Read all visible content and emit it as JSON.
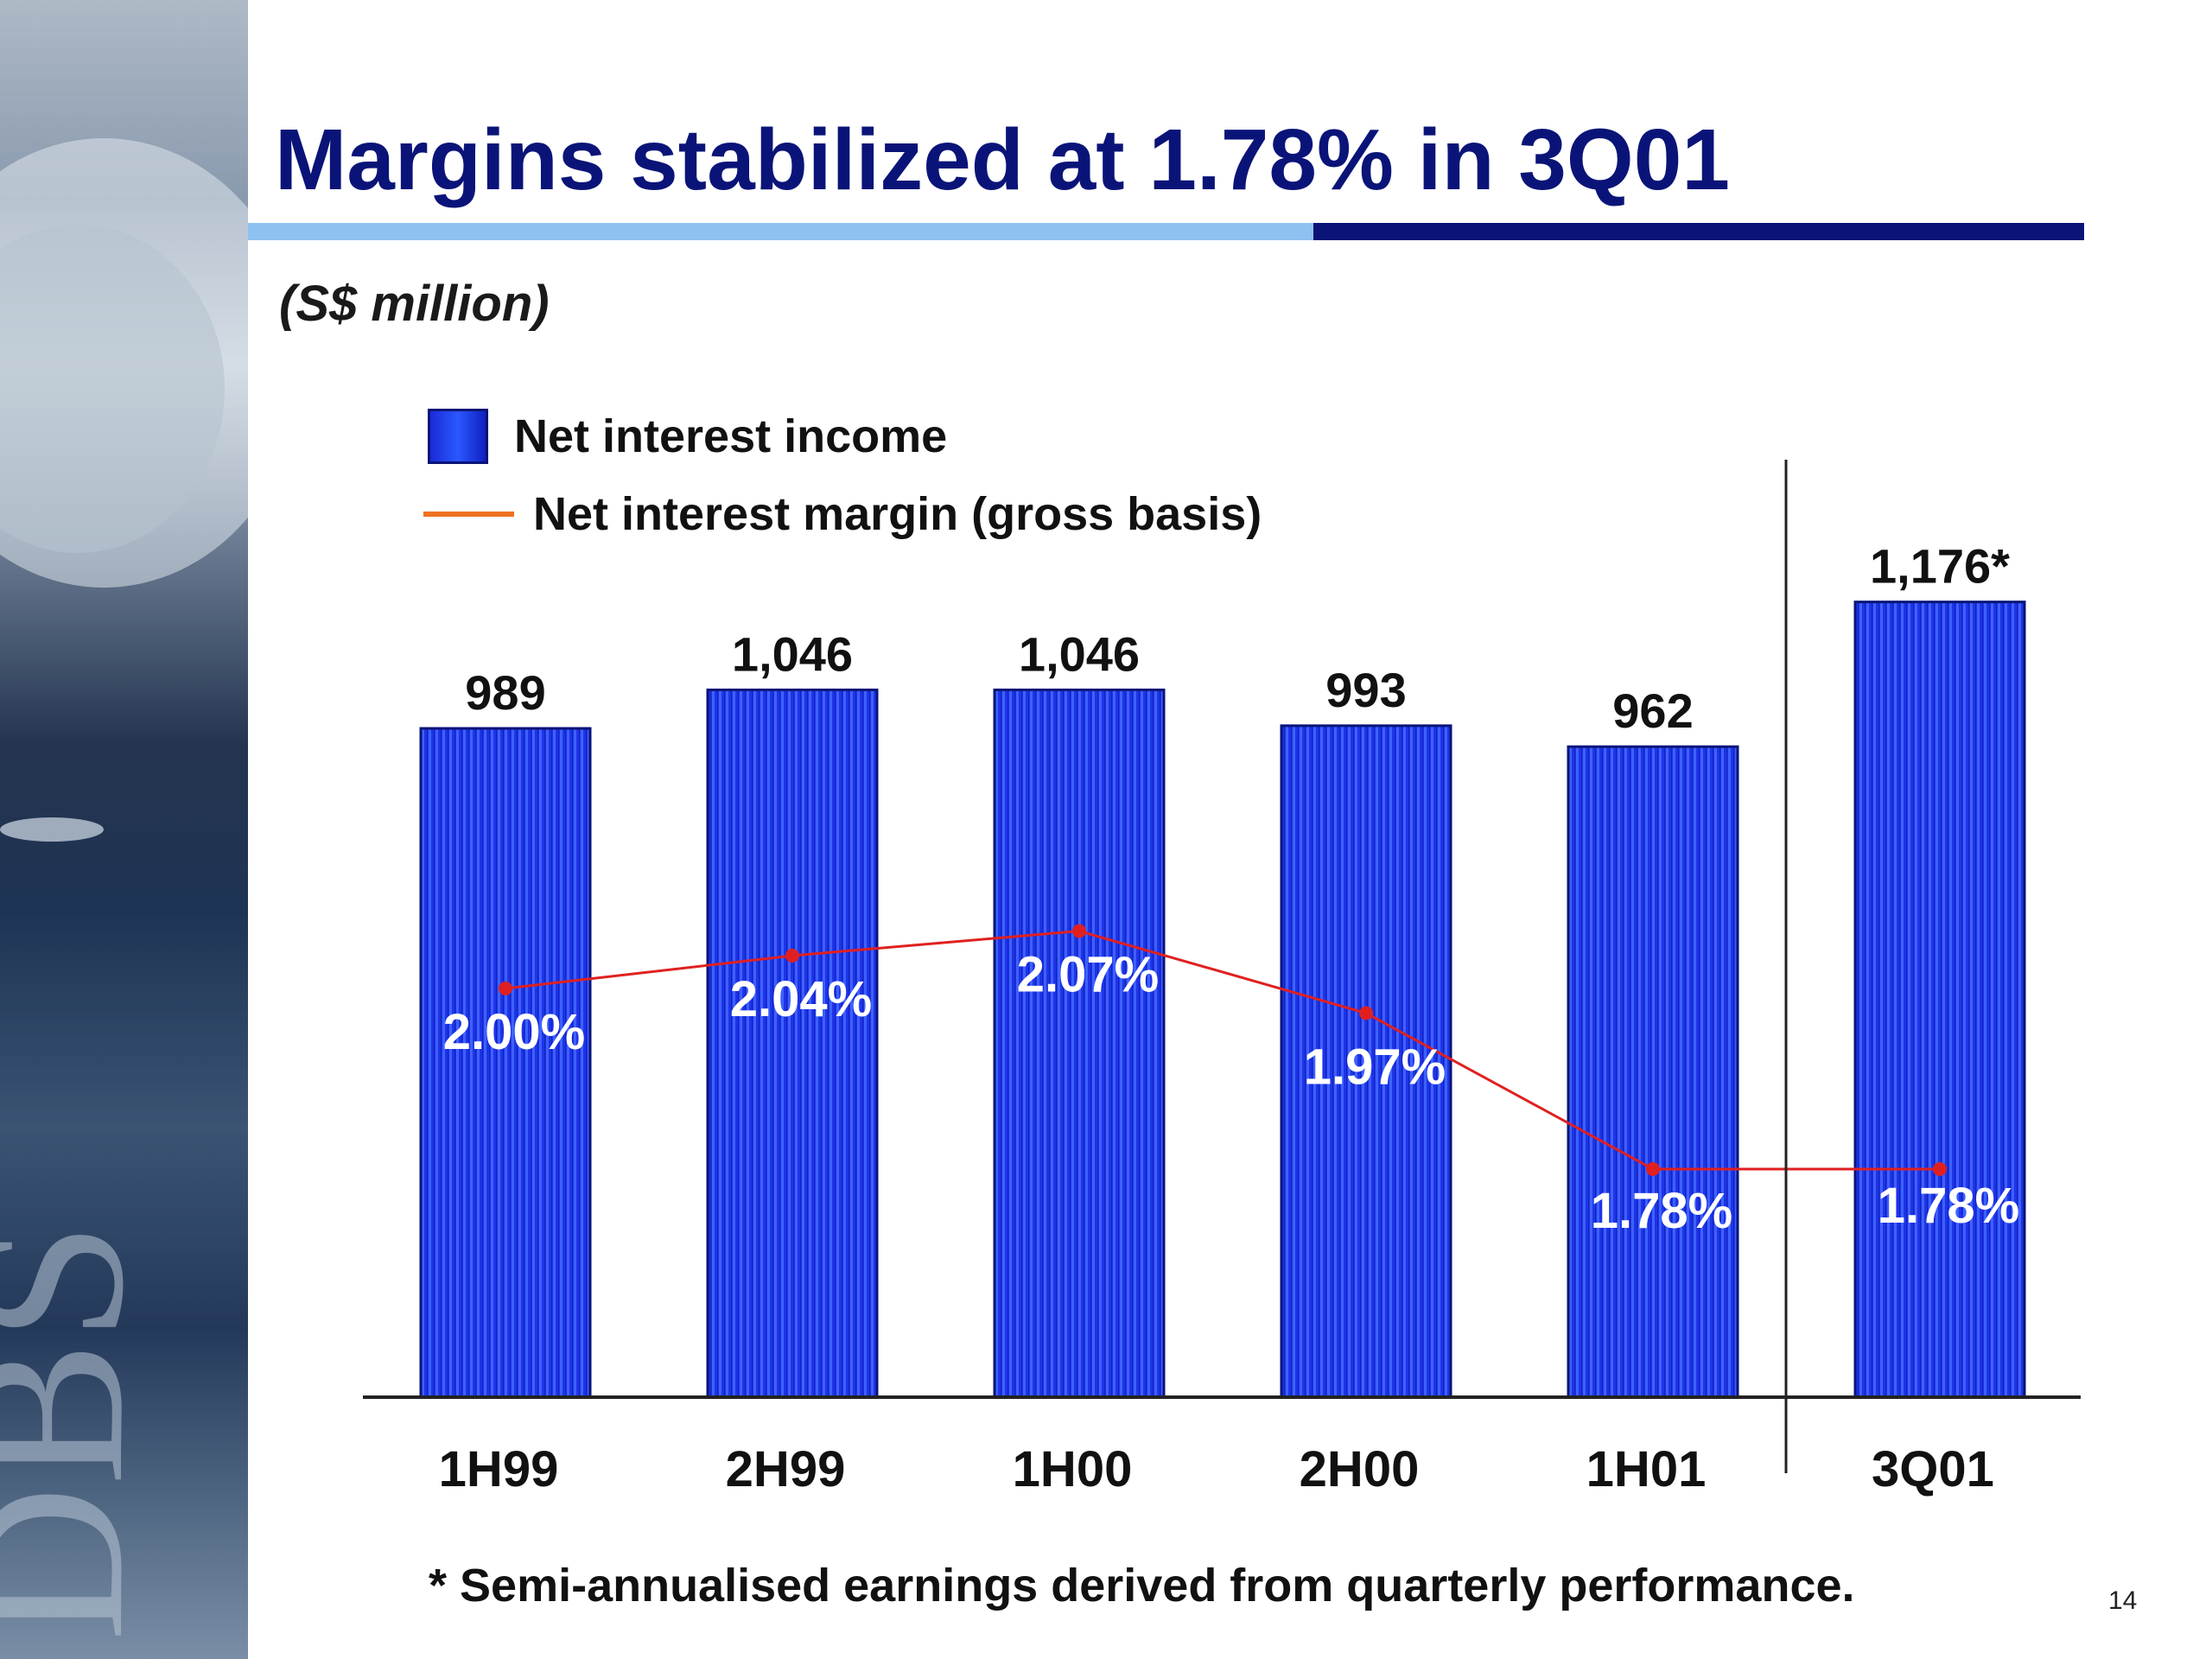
{
  "slide": {
    "title": "Margins stabilized at 1.78% in 3Q01",
    "unit_note": "(S$ million)",
    "footnote": "*  Semi-annualised earnings derived from quarterly performance.",
    "page_number": "14",
    "side_logo_text": "DBS"
  },
  "colors": {
    "title": "#0a1478",
    "bar_fill": "#1f33e8",
    "bar_stripe": "#3b62ff",
    "line": "#e02020",
    "legend_line": "#f07020",
    "rule_light": "#8fc1f0",
    "rule_dark": "#0a1478"
  },
  "chart_data": {
    "type": "bar",
    "categories": [
      "1H99",
      "2H99",
      "1H00",
      "2H00",
      "1H01",
      "3Q01"
    ],
    "series": [
      {
        "name": "Net interest income",
        "type": "bar",
        "values": [
          989,
          1046,
          1046,
          993,
          962,
          1176
        ],
        "data_labels": [
          "989",
          "1,046",
          "1,046",
          "993",
          "962",
          "1,176*"
        ]
      },
      {
        "name": "Net interest margin (gross basis)",
        "type": "line",
        "values": [
          2.0,
          2.04,
          2.07,
          1.97,
          1.78,
          1.78
        ],
        "data_labels": [
          "2.00%",
          "2.04%",
          "2.07%",
          "1.97%",
          "1.78%",
          "1.78%"
        ]
      }
    ],
    "ylim": [
      0,
      1250
    ],
    "y2lim": [
      1.0,
      2.4
    ],
    "legend_position": "top-left",
    "grid": false
  }
}
